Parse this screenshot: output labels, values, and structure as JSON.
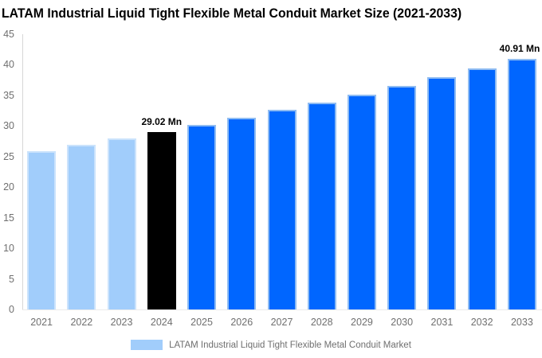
{
  "chart_data": {
    "type": "bar",
    "title": "LATAM Industrial Liquid Tight Flexible Metal Conduit Market Size (2021-2033)",
    "xlabel": "",
    "ylabel": "",
    "ylim": [
      0,
      45
    ],
    "yticks": [
      0,
      5,
      10,
      15,
      20,
      25,
      30,
      35,
      40,
      45
    ],
    "grid": false,
    "legend_position": "bottom",
    "legend": "LATAM Industrial Liquid Tight Flexible Metal Conduit Market",
    "unit": "Mn",
    "categories": [
      "2021",
      "2022",
      "2023",
      "2024",
      "2025",
      "2026",
      "2027",
      "2028",
      "2029",
      "2030",
      "2031",
      "2032",
      "2033"
    ],
    "values": [
      25.88,
      26.89,
      27.93,
      29.02,
      30.15,
      31.32,
      32.54,
      33.8,
      35.12,
      36.48,
      37.9,
      39.38,
      40.91
    ],
    "bar_types": [
      "historical",
      "historical",
      "historical",
      "base",
      "forecast",
      "forecast",
      "forecast",
      "forecast",
      "forecast",
      "forecast",
      "forecast",
      "forecast",
      "forecast"
    ],
    "series_colors": {
      "historical": {
        "fill": "#A1CDFB",
        "border": "#CBE3FC"
      },
      "base": {
        "fill": "#000000",
        "border": "#000000"
      },
      "forecast": {
        "fill": "#0066FF",
        "border": "#8FBCF2"
      }
    },
    "axis_color": "#d6d6d6",
    "tick_color": "#6f6f6f",
    "annotations": [
      {
        "category": "2024",
        "text": "29.02 Mn"
      },
      {
        "category": "2033",
        "text": "40.91 Mn"
      }
    ]
  }
}
